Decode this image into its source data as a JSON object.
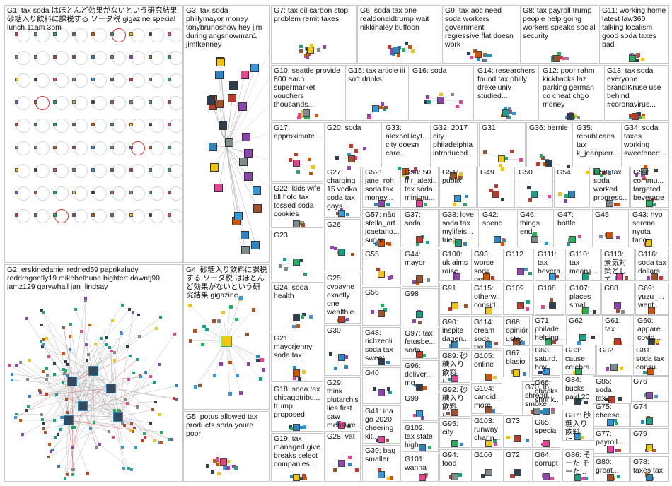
{
  "graph": {
    "groups": [
      {
        "id": "G1",
        "label": "G1: tax soda はほとんど効果がないという研究結果 砂糖入り飲料に課税する ソーダ税 gigazine special lunch 11am 3pm",
        "kind": "grid"
      },
      {
        "id": "G2",
        "label": "G2: erskinedaniel redned59 paprikalady reddragonfly19 mikebethune bightert dawntj90 jamz129 garywhall jan_lindsay",
        "kind": "hub"
      },
      {
        "id": "G3",
        "label": "G3: tax soda phillymayor money tonybrunoshow hey jim during angsnowman1 jimfkenney",
        "kind": "tree"
      },
      {
        "id": "G4",
        "label": "G4: 砂糖入り飲料に課税する ソーダ税 はほとんど効果がないという研究結果 gigazine",
        "kind": "star"
      },
      {
        "id": "G5",
        "label": "G5: potus allowed tax products soda youre poor",
        "kind": "cluster"
      },
      {
        "id": "G6",
        "label": "G6: soda tax one realdonaldtrump wait nikkihaley buffoon",
        "kind": "cluster"
      },
      {
        "id": "G7",
        "label": "G7: tax oil carbon stop problem remit taxes",
        "kind": "cluster"
      },
      {
        "id": "G8",
        "label": "G8: tax payroll trump people help going workers speaks social security",
        "kind": "cluster"
      },
      {
        "id": "G9",
        "label": "G9: tax aoc need soda workers government regressive flat doesn work",
        "kind": "cluster"
      },
      {
        "id": "G10",
        "label": "G10: seattle provide 800 each supermarket vouchers thousands...",
        "kind": "cluster"
      },
      {
        "id": "G11",
        "label": "G11: working home latest law360 talking localism good soda taxes bad",
        "kind": "cluster"
      },
      {
        "id": "G12",
        "label": "G12: poor rahm kickbacks laz parking german co cheat chgo money",
        "kind": "cluster"
      },
      {
        "id": "G13",
        "label": "G13: tax soda everyone brandiKruse use behind #coronavirus...",
        "kind": "cluster"
      },
      {
        "id": "G14",
        "label": "G14: researchers found tax philly drexeluniv studied...",
        "kind": "cluster"
      },
      {
        "id": "G15",
        "label": "G15: tax article iii soft drinks",
        "kind": "cluster"
      },
      {
        "id": "G16",
        "label": "G16: soda",
        "kind": "cluster"
      },
      {
        "id": "G17",
        "label": "G17: approximate...",
        "kind": "cluster"
      },
      {
        "id": "G18",
        "label": "G18: soda tax chicagotribu... trump proposed",
        "kind": "cluster"
      },
      {
        "id": "G19",
        "label": "G19: tax managed give breaks select companies...",
        "kind": "cluster"
      },
      {
        "id": "G20",
        "label": "G20: soda",
        "kind": "cluster"
      },
      {
        "id": "G21",
        "label": "G21: mayorjenny soda tax",
        "kind": "cluster"
      },
      {
        "id": "G22",
        "label": "G22: kids wife till hold tax tossed soda cookies",
        "kind": "cluster"
      },
      {
        "id": "G23",
        "label": "G23",
        "kind": "cluster"
      },
      {
        "id": "G24",
        "label": "G24: soda health",
        "kind": "cluster"
      },
      {
        "id": "G25",
        "label": "G25: cvpayne exactly one wealthie...",
        "kind": "cluster"
      },
      {
        "id": "G26",
        "label": "G26",
        "kind": "cluster"
      },
      {
        "id": "G27",
        "label": "G27: charging 15 vodka soda tax gays...",
        "kind": "cluster"
      },
      {
        "id": "G28",
        "label": "G28: vat",
        "kind": "cluster"
      },
      {
        "id": "G29",
        "label": "G29: think plutarch's lies first saw measure...",
        "kind": "cluster"
      },
      {
        "id": "G30",
        "label": "G30",
        "kind": "cluster"
      },
      {
        "id": "G31",
        "label": "G31",
        "kind": "cluster"
      },
      {
        "id": "G32",
        "label": "G32: 2017 city philadelphia introduced...",
        "kind": "cluster"
      },
      {
        "id": "G33",
        "label": "G33: alexhollleyf... city doesn care...",
        "kind": "cluster"
      },
      {
        "id": "G34",
        "label": "G34: soda taxes working sweetened...",
        "kind": "cluster"
      },
      {
        "id": "G35",
        "label": "G35: republicans tax k_jeanpierr...",
        "kind": "cluster"
      },
      {
        "id": "G36",
        "label": "G36: bernie",
        "kind": "cluster"
      },
      {
        "id": "G37",
        "label": "G37: soda",
        "kind": "cluster"
      },
      {
        "id": "G38",
        "label": "G38: love soda tax mylifeis... tried...",
        "kind": "cluster"
      },
      {
        "id": "G39",
        "label": "G39: bag smaller",
        "kind": "cluster"
      },
      {
        "id": "G40",
        "label": "G40",
        "kind": "cluster"
      },
      {
        "id": "G41",
        "label": "G41: ina go 2020 cheering kit...",
        "kind": "cluster"
      },
      {
        "id": "G42",
        "label": "G42: spend",
        "kind": "cluster"
      },
      {
        "id": "G43",
        "label": "G43: hyo serena nyota tano",
        "kind": "cluster"
      },
      {
        "id": "G44",
        "label": "G44: mayor",
        "kind": "cluster"
      },
      {
        "id": "G45",
        "label": "G45",
        "kind": "cluster"
      },
      {
        "id": "G46",
        "label": "G46: things end",
        "kind": "cluster"
      },
      {
        "id": "G47",
        "label": "G47: bottle",
        "kind": "cluster"
      },
      {
        "id": "G48",
        "label": "G48: richzeoli soda tax sweet",
        "kind": "cluster"
      },
      {
        "id": "G49",
        "label": "G49",
        "kind": "cluster"
      },
      {
        "id": "G50",
        "label": "G50",
        "kind": "cluster"
      },
      {
        "id": "G51",
        "label": "G51: publix",
        "kind": "cluster"
      },
      {
        "id": "G52",
        "label": "G52: jane_roh soda tax money...",
        "kind": "cluster"
      },
      {
        "id": "G53",
        "label": "G53: 50 mr_alexi... tax soda minimu...",
        "kind": "cluster"
      },
      {
        "id": "G54",
        "label": "G54",
        "kind": "cluster"
      },
      {
        "id": "G55",
        "label": "G55",
        "kind": "cluster"
      },
      {
        "id": "G56",
        "label": "G56",
        "kind": "cluster"
      },
      {
        "id": "G57",
        "label": "G57: não stella_art... jcaetano... sugar",
        "kind": "cluster"
      },
      {
        "id": "G58",
        "label": "G58: tax soda worked progress...",
        "kind": "cluster"
      },
      {
        "id": "G59",
        "label": "G59: commu... targeted beverage",
        "kind": "cluster"
      },
      {
        "id": "G60",
        "label": "G60: appare... covid...",
        "kind": "cluster"
      },
      {
        "id": "G61",
        "label": "G61: tax",
        "kind": "cluster"
      },
      {
        "id": "G62",
        "label": "G62",
        "kind": "cluster"
      },
      {
        "id": "G63",
        "label": "G63: saturd... boy...",
        "kind": "cluster"
      },
      {
        "id": "G64",
        "label": "G64: corrupt",
        "kind": "cluster"
      },
      {
        "id": "G65",
        "label": "G65: special ...",
        "kind": "cluster"
      },
      {
        "id": "G66",
        "label": "G66: checks shrink...",
        "kind": "cluster"
      },
      {
        "id": "G67",
        "label": "G67: blasio",
        "kind": "cluster"
      },
      {
        "id": "G68",
        "label": "G68: opinión usted",
        "kind": "cluster"
      },
      {
        "id": "G69",
        "label": "G69: yuzu_... went...",
        "kind": "cluster"
      },
      {
        "id": "G70",
        "label": "G70: lb shredd... smoke...",
        "kind": "cluster"
      },
      {
        "id": "G71",
        "label": "G71: philade... helping...",
        "kind": "cluster"
      },
      {
        "id": "G72",
        "label": "G72",
        "kind": "cluster"
      },
      {
        "id": "G73",
        "label": "G73",
        "kind": "cluster"
      },
      {
        "id": "G74",
        "label": "G74",
        "kind": "cluster"
      },
      {
        "id": "G75",
        "label": "G75: cheese...",
        "kind": "cluster"
      },
      {
        "id": "G76",
        "label": "G76",
        "kind": "cluster"
      },
      {
        "id": "G77",
        "label": "G77: payroll...",
        "kind": "cluster"
      },
      {
        "id": "G78",
        "label": "G78: taxes tax",
        "kind": "cluster"
      },
      {
        "id": "G79",
        "label": "G79",
        "kind": "cluster"
      },
      {
        "id": "G80",
        "label": "G80: great...",
        "kind": "cluster"
      },
      {
        "id": "G81",
        "label": "G81: soda tax consu...",
        "kind": "cluster"
      },
      {
        "id": "G82",
        "label": "G82",
        "kind": "cluster"
      },
      {
        "id": "G83",
        "label": "G83: cause celebra...",
        "kind": "cluster"
      },
      {
        "id": "G84",
        "label": "G84: bucks paid 20",
        "kind": "cluster"
      },
      {
        "id": "G85",
        "label": "G85: soda tax...",
        "kind": "cluster"
      },
      {
        "id": "G86",
        "label": "G86: そーた そーた...",
        "kind": "cluster"
      },
      {
        "id": "G87",
        "label": "G87: 砂糖入り 飲料に...",
        "kind": "cluster"
      },
      {
        "id": "G88",
        "label": "G88",
        "kind": "cluster"
      },
      {
        "id": "G89",
        "label": "G89: 砂 糖入り 飲料に...",
        "kind": "cluster"
      },
      {
        "id": "G90",
        "label": "G90: inspite dagen...",
        "kind": "cluster"
      },
      {
        "id": "G91",
        "label": "G91",
        "kind": "cluster"
      },
      {
        "id": "G92",
        "label": "G92: 砂 糖入り 飲料に...",
        "kind": "cluster"
      },
      {
        "id": "G93",
        "label": "G93: worse soda tax",
        "kind": "cluster"
      },
      {
        "id": "G94",
        "label": "G94: food",
        "kind": "cluster"
      },
      {
        "id": "G95",
        "label": "G95: city",
        "kind": "cluster"
      },
      {
        "id": "G96",
        "label": "G96: deliver... mg",
        "kind": "cluster"
      },
      {
        "id": "G97",
        "label": "G97: tax fetusbe... soda",
        "kind": "cluster"
      },
      {
        "id": "G98",
        "label": "G98",
        "kind": "cluster"
      },
      {
        "id": "G99",
        "label": "G99",
        "kind": "cluster"
      },
      {
        "id": "G100",
        "label": "G100: uk aims raise...",
        "kind": "cluster"
      },
      {
        "id": "G101",
        "label": "G101: wanna",
        "kind": "cluster"
      },
      {
        "id": "G102",
        "label": "G102: tax state high",
        "kind": "cluster"
      },
      {
        "id": "G103",
        "label": "G103: runway chann...",
        "kind": "cluster"
      },
      {
        "id": "G104",
        "label": "G104: candid... more",
        "kind": "cluster"
      },
      {
        "id": "G105",
        "label": "G105: online",
        "kind": "cluster"
      },
      {
        "id": "G106",
        "label": "G106",
        "kind": "cluster"
      },
      {
        "id": "G107",
        "label": "G107: places small",
        "kind": "cluster"
      },
      {
        "id": "G108",
        "label": "G108",
        "kind": "cluster"
      },
      {
        "id": "G109",
        "label": "G109",
        "kind": "cluster"
      },
      {
        "id": "G110",
        "label": "G110: tax means...",
        "kind": "cluster"
      },
      {
        "id": "G111",
        "label": "G111: tax bevera...",
        "kind": "cluster"
      },
      {
        "id": "G112",
        "label": "G112",
        "kind": "cluster"
      },
      {
        "id": "G113",
        "label": "G113: 景気対 策として...",
        "kind": "cluster"
      },
      {
        "id": "G114",
        "label": "G114: cream soda tax",
        "kind": "cluster"
      },
      {
        "id": "G115",
        "label": "G115: otherw... consid...",
        "kind": "cluster"
      },
      {
        "id": "G116",
        "label": "G116: soda tax dollars",
        "kind": "cluster"
      }
    ]
  }
}
